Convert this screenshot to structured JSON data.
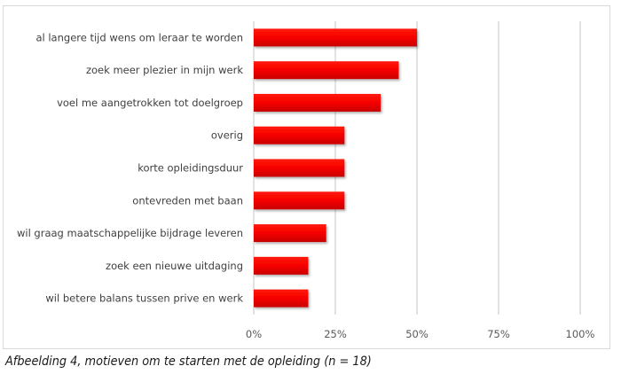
{
  "chart_data": {
    "type": "bar",
    "orientation": "horizontal",
    "categories": [
      "al langere tijd wens om leraar te worden",
      "zoek meer plezier in mijn werk",
      "voel me aangetrokken tot doelgroep",
      "overig",
      "korte opleidingsduur",
      "ontevreden met baan",
      "wil graag maatschappelijke bijdrage leveren",
      "zoek een nieuwe uitdaging",
      "wil betere balans tussen prive en werk"
    ],
    "values": [
      50,
      44.4,
      38.9,
      27.8,
      27.8,
      27.8,
      22.2,
      16.7,
      16.7
    ],
    "xlim": [
      0,
      100
    ],
    "xticks": [
      "0%",
      "25%",
      "50%",
      "75%",
      "100%"
    ],
    "grid": true,
    "bar_color": "#ff0000",
    "title": "",
    "xlabel": "",
    "ylabel": ""
  },
  "caption": "Afbeelding 4, motieven om te starten met de opleiding (n = 18)"
}
